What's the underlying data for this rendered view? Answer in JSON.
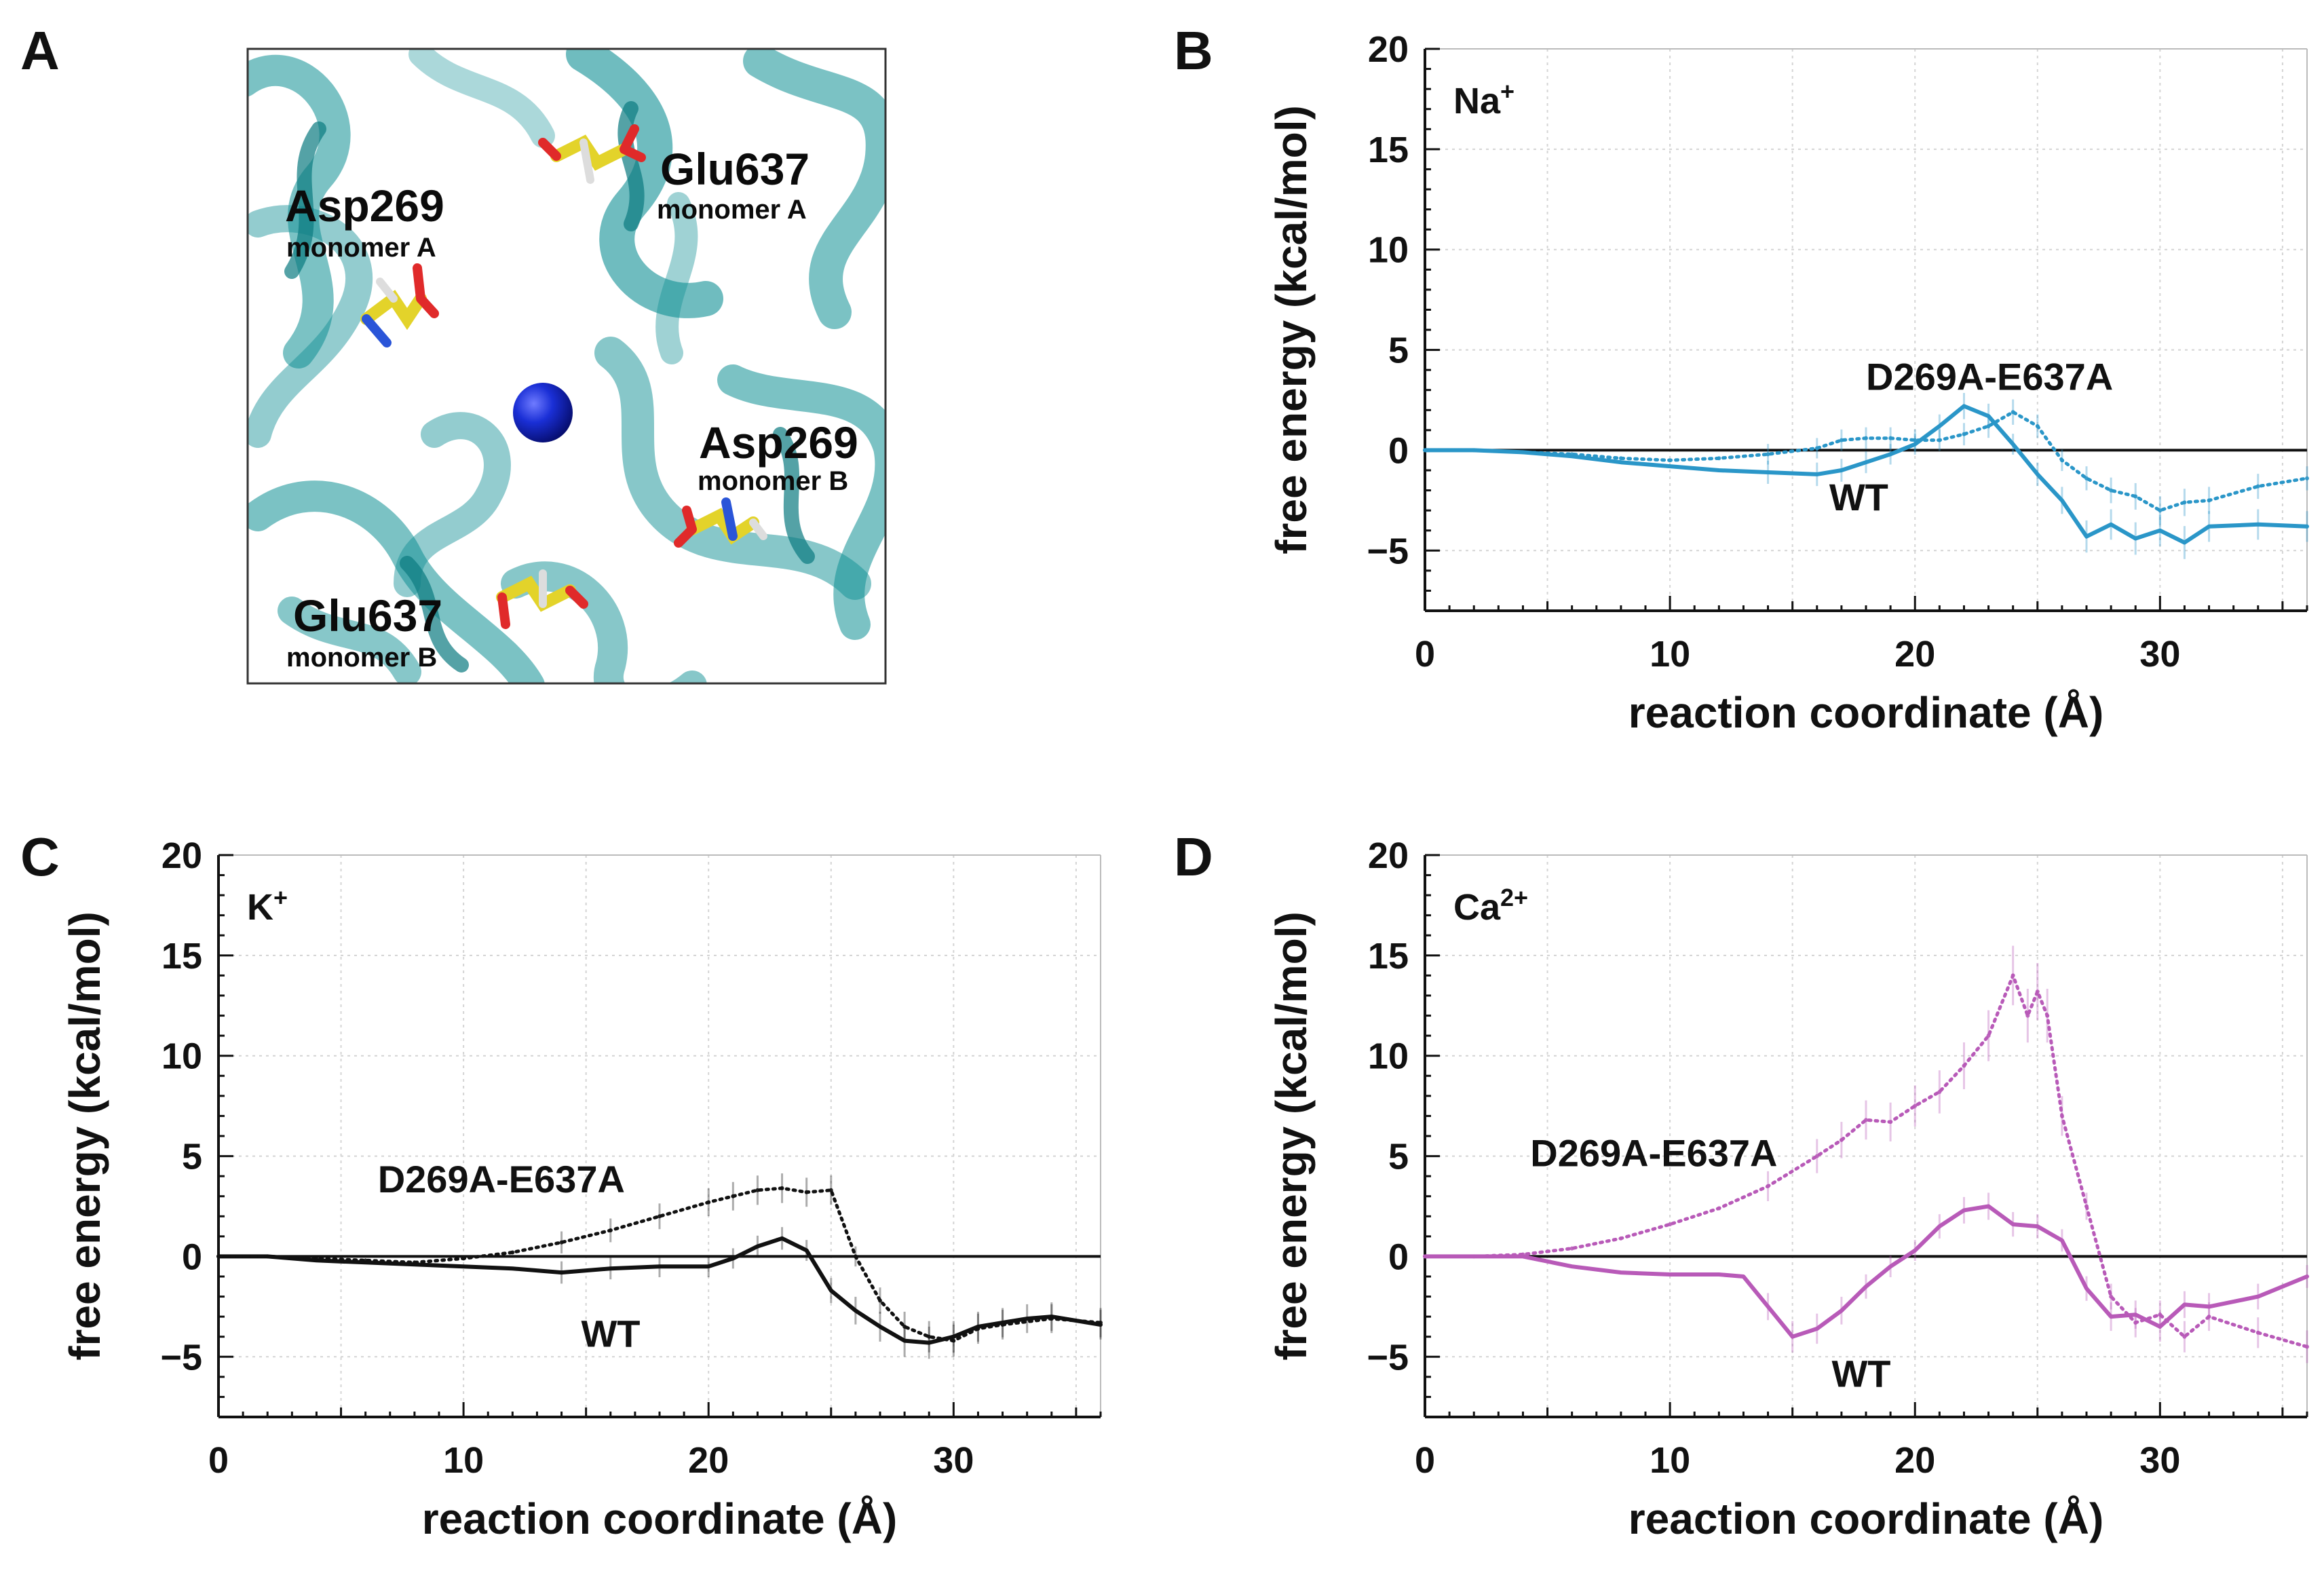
{
  "panel_a": {
    "letter": "A",
    "residues": [
      {
        "name": "Glu637",
        "sub": "monomer A"
      },
      {
        "name": "Asp269",
        "sub": "monomer A"
      },
      {
        "name": "Asp269",
        "sub": "monomer B"
      },
      {
        "name": "Glu637",
        "sub": "monomer B"
      }
    ]
  },
  "colors": {
    "Na": "#2a96c8",
    "K": "#111111",
    "Ca": "#b85ab8",
    "protein": "#0f8f94"
  },
  "chart_data": [
    {
      "id": "B",
      "letter": "B",
      "type": "line",
      "ion": "Na",
      "ion_sup": "+",
      "color_key": "Na",
      "xlabel": "reaction coordinate (Å)",
      "ylabel": "free energy (kcal/mol)",
      "xlim": [
        0,
        36
      ],
      "ylim": [
        -8,
        20
      ],
      "xticks": [
        0,
        10,
        20,
        30
      ],
      "yticks": [
        -5,
        0,
        5,
        10,
        15,
        20
      ],
      "ytick_labels": [
        "−5",
        "0",
        "5",
        "10",
        "15",
        "20"
      ],
      "annotations": [
        {
          "text": "D269A-E637A",
          "x": 18,
          "y": 3
        },
        {
          "text": "WT",
          "x": 16.5,
          "y": -3
        }
      ],
      "series": [
        {
          "name": "WT",
          "style": "solid",
          "x": [
            0,
            2,
            4,
            6,
            8,
            10,
            12,
            14,
            16,
            17,
            18,
            19,
            20,
            21,
            22,
            23,
            24,
            25,
            26,
            27,
            28,
            29,
            30,
            31,
            32,
            34,
            36
          ],
          "y": [
            0,
            0,
            -0.1,
            -0.3,
            -0.6,
            -0.8,
            -1.0,
            -1.1,
            -1.2,
            -1.0,
            -0.6,
            -0.2,
            0.3,
            1.2,
            2.2,
            1.7,
            0.3,
            -1.2,
            -2.5,
            -4.3,
            -3.7,
            -4.4,
            -4.0,
            -4.6,
            -3.8,
            -3.7,
            -3.8
          ]
        },
        {
          "name": "D269A-E637A",
          "style": "dotted",
          "x": [
            0,
            2,
            4,
            6,
            8,
            10,
            12,
            14,
            16,
            17,
            18,
            19,
            20,
            21,
            22,
            23,
            24,
            25,
            26,
            27,
            28,
            29,
            30,
            31,
            32,
            34,
            36
          ],
          "y": [
            0,
            0,
            -0.1,
            -0.2,
            -0.4,
            -0.5,
            -0.4,
            -0.2,
            0.1,
            0.5,
            0.6,
            0.6,
            0.5,
            0.5,
            0.8,
            1.2,
            1.9,
            1.2,
            -0.5,
            -1.4,
            -2.0,
            -2.3,
            -3.0,
            -2.6,
            -2.5,
            -1.8,
            -1.4
          ]
        }
      ]
    },
    {
      "id": "C",
      "letter": "C",
      "type": "line",
      "ion": "K",
      "ion_sup": "+",
      "color_key": "K",
      "xlabel": "reaction coordinate (Å)",
      "ylabel": "free energy (kcal/mol)",
      "xlim": [
        0,
        36
      ],
      "ylim": [
        -8,
        20
      ],
      "xticks": [
        0,
        10,
        20,
        30
      ],
      "yticks": [
        -5,
        0,
        5,
        10,
        15,
        20
      ],
      "ytick_labels": [
        "−5",
        "0",
        "5",
        "10",
        "15",
        "20"
      ],
      "annotations": [
        {
          "text": "D269A-E637A",
          "x": 6.5,
          "y": 3.2
        },
        {
          "text": "WT",
          "x": 14.8,
          "y": -4.5
        }
      ],
      "series": [
        {
          "name": "WT",
          "style": "solid",
          "x": [
            0,
            2,
            4,
            6,
            8,
            10,
            12,
            14,
            16,
            18,
            20,
            21,
            22,
            23,
            24,
            25,
            26,
            27,
            28,
            29,
            30,
            31,
            32,
            33,
            34,
            36
          ],
          "y": [
            0,
            0,
            -0.2,
            -0.3,
            -0.4,
            -0.5,
            -0.6,
            -0.8,
            -0.6,
            -0.5,
            -0.5,
            -0.1,
            0.5,
            0.9,
            0.3,
            -1.7,
            -2.7,
            -3.5,
            -4.2,
            -4.3,
            -4.0,
            -3.5,
            -3.3,
            -3.1,
            -3.0,
            -3.4
          ]
        },
        {
          "name": "D269A-E637A",
          "style": "dotted",
          "x": [
            0,
            2,
            4,
            6,
            8,
            10,
            12,
            14,
            16,
            18,
            20,
            21,
            22,
            23,
            24,
            25,
            26,
            27,
            28,
            29,
            30,
            31,
            32,
            34,
            36
          ],
          "y": [
            0,
            0,
            -0.1,
            -0.2,
            -0.3,
            -0.1,
            0.2,
            0.7,
            1.3,
            2.0,
            2.7,
            3.0,
            3.3,
            3.4,
            3.2,
            3.3,
            0.0,
            -2.2,
            -3.5,
            -4.0,
            -4.2,
            -3.6,
            -3.4,
            -3.1,
            -3.3
          ]
        }
      ]
    },
    {
      "id": "D",
      "letter": "D",
      "type": "line",
      "ion": "Ca",
      "ion_sup": "2+",
      "color_key": "Ca",
      "xlabel": "reaction coordinate (Å)",
      "ylabel": "free energy (kcal/mol)",
      "xlim": [
        0,
        36
      ],
      "ylim": [
        -8,
        20
      ],
      "xticks": [
        0,
        10,
        20,
        30
      ],
      "yticks": [
        -5,
        0,
        5,
        10,
        15,
        20
      ],
      "ytick_labels": [
        "−5",
        "0",
        "5",
        "10",
        "15",
        "20"
      ],
      "annotations": [
        {
          "text": "D269A-E637A",
          "x": 4.3,
          "y": 4.5
        },
        {
          "text": "WT",
          "x": 16.6,
          "y": -6.5
        }
      ],
      "series": [
        {
          "name": "WT",
          "style": "solid",
          "x": [
            0,
            2,
            4,
            6,
            8,
            10,
            12,
            13,
            14,
            15,
            16,
            17,
            18,
            19,
            20,
            21,
            22,
            23,
            24,
            25,
            26,
            27,
            28,
            29,
            30,
            31,
            32,
            34,
            36
          ],
          "y": [
            0,
            0,
            0,
            -0.5,
            -0.8,
            -0.9,
            -0.9,
            -1.0,
            -2.5,
            -4.0,
            -3.6,
            -2.7,
            -1.5,
            -0.5,
            0.3,
            1.5,
            2.3,
            2.5,
            1.6,
            1.5,
            0.8,
            -1.6,
            -3.0,
            -2.9,
            -3.5,
            -2.4,
            -2.5,
            -2.0,
            -1.0
          ]
        },
        {
          "name": "D269A-E637A",
          "style": "dotted",
          "x": [
            0,
            2,
            4,
            6,
            8,
            10,
            12,
            14,
            16,
            17,
            18,
            19,
            20,
            21,
            22,
            23,
            24,
            24.6,
            25,
            25.4,
            26,
            27,
            28,
            29,
            30,
            31,
            32,
            34,
            36
          ],
          "y": [
            0,
            0,
            0.1,
            0.4,
            0.9,
            1.6,
            2.4,
            3.5,
            5.0,
            5.8,
            6.8,
            6.7,
            7.5,
            8.2,
            9.5,
            11.0,
            14.0,
            12.0,
            13.2,
            12.0,
            7.0,
            2.5,
            -2.0,
            -3.3,
            -2.9,
            -4.0,
            -3.0,
            -3.8,
            -4.5
          ]
        }
      ]
    }
  ]
}
